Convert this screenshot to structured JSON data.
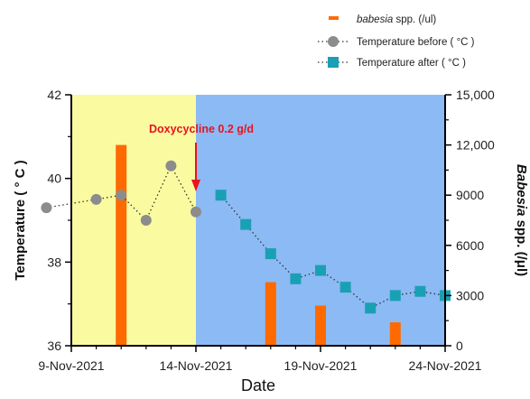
{
  "chart_data": {
    "type": "bar+line",
    "xlabel": "Date",
    "x_tick_labels": [
      "9-Nov-2021",
      "14-Nov-2021",
      "19-Nov-2021",
      "24-Nov-2021"
    ],
    "x_range_days": [
      "2021-11-09",
      "2021-11-24"
    ],
    "left_axis": {
      "label": "Temperature ( ° C )",
      "ylim": [
        36,
        42
      ],
      "ticks": [
        "36",
        "38",
        "40",
        "42"
      ]
    },
    "right_axis": {
      "label_italic": "Babesia",
      "label_rest": " spp. (/μl)",
      "ylim": [
        0,
        15000
      ],
      "ticks": [
        "0",
        "3000",
        "6000",
        "9000",
        "12,000",
        "15,000"
      ]
    },
    "legend": [
      {
        "italic": "babesia",
        "text": " spp. (/ul)",
        "marker": "bar",
        "color": "#ff6a00"
      },
      {
        "text": "Temperature before ( °C )",
        "marker": "circle",
        "color": "#8c8c8c"
      },
      {
        "text": "Temperature after ( °C )",
        "marker": "square",
        "color": "#1aa0b4"
      }
    ],
    "annotation": {
      "text": "Doxycycline 0.2 g/d",
      "date": "2021-11-14",
      "color": "#e8141e"
    },
    "background_regions": [
      {
        "from": "2021-11-09",
        "to": "2021-11-14",
        "color": "#fafaa0"
      },
      {
        "from": "2021-11-14",
        "to": "2021-11-24",
        "color": "#8cbaf5"
      }
    ],
    "series": [
      {
        "name": "babesia spp. (/ul)",
        "kind": "bar",
        "axis": "right",
        "color": "#ff6a00",
        "points": [
          {
            "date": "2021-11-11",
            "value": 12000
          },
          {
            "date": "2021-11-17",
            "value": 3800
          },
          {
            "date": "2021-11-19",
            "value": 2400
          },
          {
            "date": "2021-11-22",
            "value": 1400
          }
        ]
      },
      {
        "name": "Temperature before ( °C )",
        "kind": "line",
        "marker": "circle",
        "axis": "left",
        "color": "#8c8c8c",
        "points": [
          {
            "date": "2021-11-08",
            "value": 39.3
          },
          {
            "date": "2021-11-10",
            "value": 39.5
          },
          {
            "date": "2021-11-11",
            "value": 39.6
          },
          {
            "date": "2021-11-12",
            "value": 39.0
          },
          {
            "date": "2021-11-13",
            "value": 40.3
          },
          {
            "date": "2021-11-14",
            "value": 39.2
          }
        ]
      },
      {
        "name": "Temperature after ( °C )",
        "kind": "line",
        "marker": "square",
        "axis": "left",
        "color": "#1aa0b4",
        "points": [
          {
            "date": "2021-11-15",
            "value": 39.6
          },
          {
            "date": "2021-11-16",
            "value": 38.9
          },
          {
            "date": "2021-11-17",
            "value": 38.2
          },
          {
            "date": "2021-11-18",
            "value": 37.6
          },
          {
            "date": "2021-11-19",
            "value": 37.8
          },
          {
            "date": "2021-11-20",
            "value": 37.4
          },
          {
            "date": "2021-11-21",
            "value": 36.9
          },
          {
            "date": "2021-11-22",
            "value": 37.2
          },
          {
            "date": "2021-11-23",
            "value": 37.3
          },
          {
            "date": "2021-11-24",
            "value": 37.2
          }
        ]
      }
    ]
  }
}
